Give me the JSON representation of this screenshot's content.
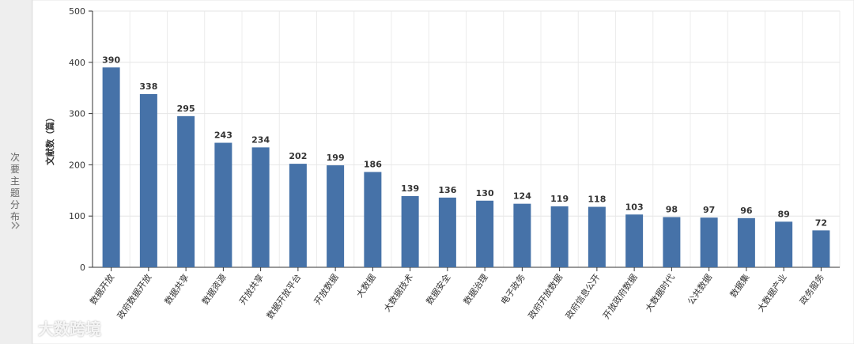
{
  "sidebar": {
    "label": "次要主题分布"
  },
  "watermark": "大数跨境",
  "chart_data": {
    "type": "bar",
    "ylabel": "文献数（篇）",
    "categories": [
      "数据开放",
      "政府数据开放",
      "数据共享",
      "数据资源",
      "开放共享",
      "数据开放平台",
      "开放数据",
      "大数据",
      "大数据技术",
      "数据安全",
      "数据治理",
      "电子政务",
      "政府开放数据",
      "政府信息公开",
      "开放政府数据",
      "大数据时代",
      "公共数据",
      "数据集",
      "大数据产业",
      "政务服务"
    ],
    "values": [
      390,
      338,
      295,
      243,
      234,
      202,
      199,
      186,
      139,
      136,
      130,
      124,
      119,
      118,
      103,
      98,
      97,
      96,
      89,
      72
    ],
    "color": "#4672a8",
    "ylim": [
      0,
      500
    ],
    "yticks": [
      0,
      100,
      200,
      300,
      400,
      500
    ],
    "grid": true
  }
}
